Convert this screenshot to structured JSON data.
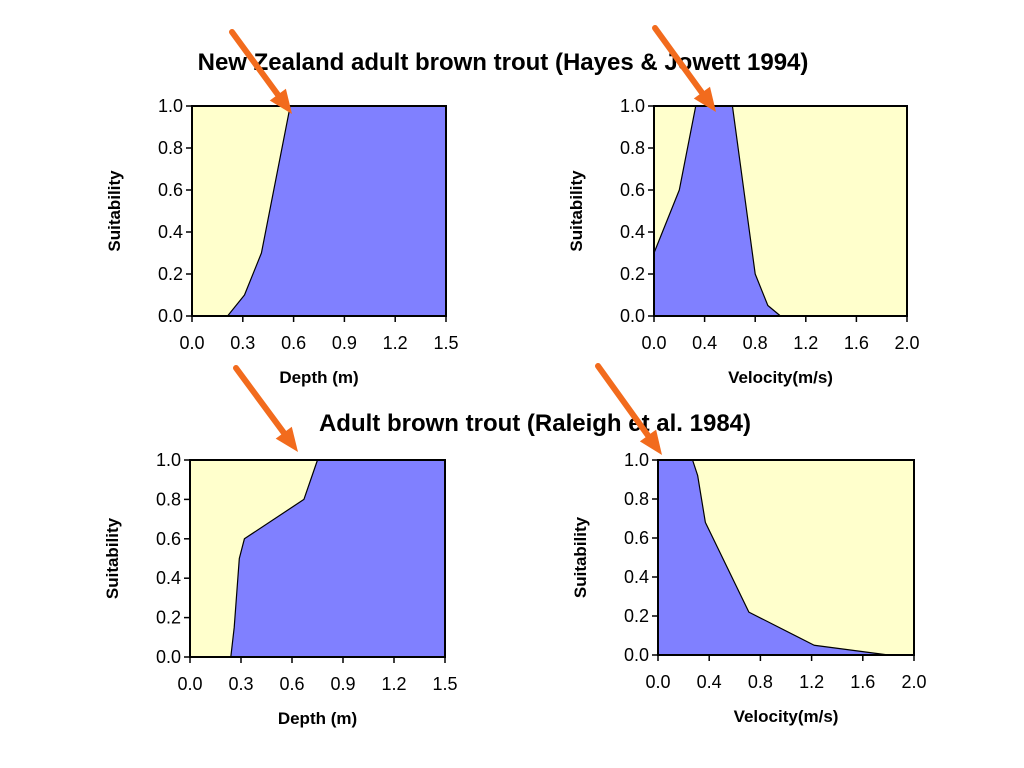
{
  "titles": {
    "top": "New Zealand adult brown trout  (Hayes & Jowett 1994)",
    "bottom": "Adult brown trout  (Raleigh et al. 1984)"
  },
  "colors": {
    "background_fill": "#FFFFCC",
    "curve_fill": "#8080FF",
    "arrow": "#F26B1D",
    "axis": "#000000"
  },
  "chart_data": [
    {
      "type": "area",
      "xlabel": "Depth (m)",
      "ylabel": "Suitability",
      "xlim": [
        0,
        1.5
      ],
      "ylim": [
        0,
        1
      ],
      "xticks": [
        "0.0",
        "0.3",
        "0.6",
        "0.9",
        "1.2",
        "1.5"
      ],
      "yticks": [
        "0.0",
        "0.2",
        "0.4",
        "0.6",
        "0.8",
        "1.0"
      ],
      "x": [
        0.21,
        0.31,
        0.41,
        0.58,
        1.5
      ],
      "y": [
        0.0,
        0.1,
        0.3,
        1.0,
        1.0
      ],
      "arrow_x": 0.58
    },
    {
      "type": "area",
      "xlabel": "Velocity(m/s)",
      "ylabel": "Suitability",
      "xlim": [
        0,
        2.0
      ],
      "ylim": [
        0,
        1
      ],
      "xticks": [
        "0.0",
        "0.4",
        "0.8",
        "1.2",
        "1.6",
        "2.0"
      ],
      "yticks": [
        "0.0",
        "0.2",
        "0.4",
        "0.6",
        "0.8",
        "1.0"
      ],
      "x": [
        0.0,
        0.2,
        0.33,
        0.62,
        0.8,
        0.9,
        1.0
      ],
      "y": [
        0.3,
        0.6,
        1.0,
        1.0,
        0.2,
        0.05,
        0.0
      ],
      "arrow_x": 0.5
    },
    {
      "type": "area",
      "xlabel": "Depth (m)",
      "ylabel": "Suitability",
      "xlim": [
        0,
        1.5
      ],
      "ylim": [
        0,
        1
      ],
      "xticks": [
        "0.0",
        "0.3",
        "0.6",
        "0.9",
        "1.2",
        "1.5"
      ],
      "yticks": [
        "0.0",
        "0.2",
        "0.4",
        "0.6",
        "0.8",
        "1.0"
      ],
      "x": [
        0.24,
        0.26,
        0.29,
        0.32,
        0.67,
        0.75,
        1.5
      ],
      "y": [
        0.0,
        0.15,
        0.5,
        0.6,
        0.8,
        1.0,
        1.0
      ],
      "arrow_x": 0.64
    },
    {
      "type": "area",
      "xlabel": "Velocity(m/s)",
      "ylabel": "Suitability",
      "xlim": [
        0,
        2.0
      ],
      "ylim": [
        0,
        1
      ],
      "xticks": [
        "0.0",
        "0.4",
        "0.8",
        "1.2",
        "1.6",
        "2.0"
      ],
      "yticks": [
        "0.0",
        "0.2",
        "0.4",
        "0.6",
        "0.8",
        "1.0"
      ],
      "x": [
        0.0,
        0.27,
        0.31,
        0.34,
        0.37,
        0.71,
        1.22,
        1.8,
        2.0
      ],
      "y": [
        1.0,
        1.0,
        0.92,
        0.8,
        0.68,
        0.22,
        0.05,
        0.0,
        0.0
      ],
      "arrow_x": 0.05
    }
  ]
}
